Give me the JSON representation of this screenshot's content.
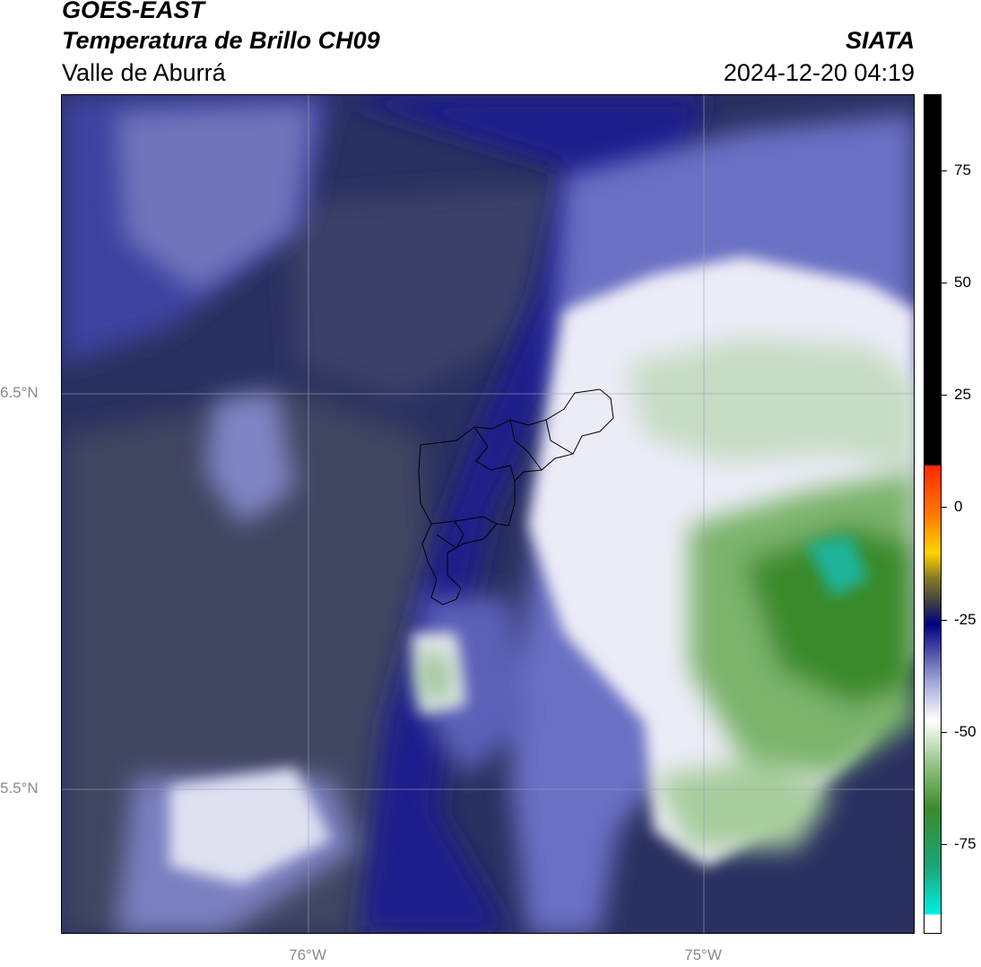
{
  "header": {
    "title": "GOES-EAST",
    "subtitle": "Temperatura de Brillo CH09",
    "region": "Valle de Aburrá",
    "organization": "SIATA",
    "datetime": "2024-12-20 04:19"
  },
  "map": {
    "lat_labels": [
      "6.5°N",
      "5.5°N"
    ],
    "lon_labels": [
      "76°W",
      "75°W"
    ],
    "extent": {
      "lon_min": -76.62,
      "lon_max": -74.47,
      "lat_min": 5.2,
      "lat_max": 7.25
    },
    "gridlines": true,
    "boundary": "Valle de Aburrá municipalities outline"
  },
  "colorbar": {
    "ticks": [
      "75",
      "50",
      "25",
      "0",
      "-25",
      "-50",
      "-75"
    ],
    "tick_values": [
      75,
      50,
      25,
      0,
      -25,
      -50,
      -75
    ],
    "range": [
      -95,
      92
    ],
    "colors": {
      "warm": "#000000",
      "red": "#ff2a00",
      "orange": "#ff9a00",
      "yellow": "#ffee00",
      "olive": "#6e6a3a",
      "navy": "#000080",
      "lavender": "#a4a8d8",
      "white": "#ffffff",
      "green": "#3b8a2c",
      "teal": "#12d8c4"
    }
  }
}
